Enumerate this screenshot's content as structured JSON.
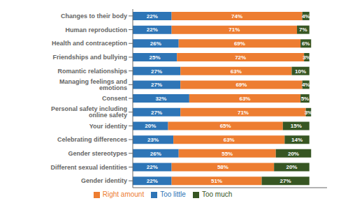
{
  "chart_data": {
    "type": "bar",
    "orientation": "horizontal",
    "stacked": true,
    "categories": [
      "Changes to their body",
      "Human reproduction",
      "Health and contraception",
      "Friendships and bullying",
      "Romantic relationships",
      "Managing feelings and emotions",
      "Consent",
      "Personal safety including online safety",
      "Your identity",
      "Celebrating differences",
      "Gender stereotypes",
      "Different sexual identities",
      "Gender identity"
    ],
    "series": [
      {
        "name": "Too little",
        "color": "#2E75B6",
        "values": [
          22,
          22,
          26,
          25,
          27,
          27,
          32,
          27,
          20,
          23,
          26,
          22,
          22
        ],
        "value_labels": [
          "22%",
          "22%",
          "26%",
          "25%",
          "27%",
          "27%",
          "32%",
          "27%",
          "20%",
          "23%",
          "26%",
          "22%",
          "22%"
        ]
      },
      {
        "name": "Right amount",
        "color": "#ED7D31",
        "values": [
          74,
          71,
          69,
          72,
          63,
          69,
          63,
          71,
          65,
          63,
          55,
          58,
          51
        ],
        "value_labels": [
          "74%",
          "71%",
          "69%",
          "72%",
          "63%",
          "69%",
          "63%",
          "71%",
          "65%",
          "63%",
          "55%",
          "58%",
          "51%"
        ]
      },
      {
        "name": "Too much",
        "color": "#375623",
        "values": [
          4,
          7,
          6,
          3,
          10,
          4,
          5,
          3,
          15,
          14,
          20,
          20,
          27
        ],
        "value_labels": [
          "4%",
          "7%",
          "6%",
          "3%",
          "10%",
          "4%",
          "5%",
          "3%",
          "15%",
          "14%",
          "20%",
          "20%",
          "27%"
        ]
      }
    ],
    "xlim": [
      0,
      110
    ],
    "tick_labels": "y",
    "data_labels": true,
    "legend": "bottom",
    "grid": false
  }
}
